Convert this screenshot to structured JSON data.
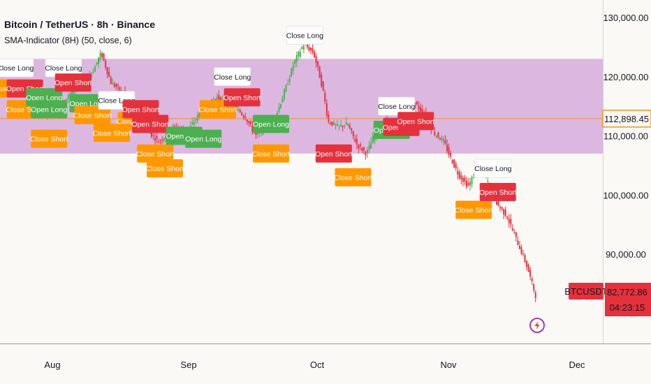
{
  "header": {
    "title": "Bitcoin / TetherUS · 8h · Binance",
    "indicator": "SMA-Indicator (8H) (50, close, 6)"
  },
  "price_tag": {
    "value": "112,898.45",
    "color": "#f7931a"
  },
  "last_price": {
    "symbol": "BTCUSDT",
    "value": "82,772.86",
    "countdown": "04:23:15",
    "color": "#e5313c"
  },
  "colors": {
    "band": "#dcb7e0",
    "open_long": "#4caf50",
    "open_short": "#e5313c",
    "close_short": "#ff9800",
    "close_long": "#ffffff",
    "candle_up": "#4caf50",
    "candle_down": "#e5313c",
    "background": "#fbf9f5"
  },
  "chart_data": {
    "type": "candlestick",
    "x_ticks": [
      "Aug",
      "Sep",
      "Oct",
      "Nov",
      "Dec"
    ],
    "y_ticks": [
      "130,000.00",
      "120,000.00",
      "110,000.00",
      "100,000.00",
      "90,000.00"
    ],
    "ylim": [
      80000,
      135000
    ],
    "band": [
      107000,
      123000
    ],
    "price_path": [
      {
        "t": 0,
        "p": 119000
      },
      {
        "t": 3,
        "p": 118000
      },
      {
        "t": 6,
        "p": 116500
      },
      {
        "t": 9,
        "p": 113500
      },
      {
        "t": 12,
        "p": 115500
      },
      {
        "t": 15,
        "p": 118500
      },
      {
        "t": 18,
        "p": 120500
      },
      {
        "t": 20,
        "p": 124000
      },
      {
        "t": 22,
        "p": 119000
      },
      {
        "t": 25,
        "p": 117000
      },
      {
        "t": 28,
        "p": 113000
      },
      {
        "t": 30,
        "p": 110500
      },
      {
        "t": 32,
        "p": 109000
      },
      {
        "t": 35,
        "p": 111500
      },
      {
        "t": 38,
        "p": 111000
      },
      {
        "t": 41,
        "p": 114500
      },
      {
        "t": 44,
        "p": 116500
      },
      {
        "t": 47,
        "p": 115500
      },
      {
        "t": 50,
        "p": 113000
      },
      {
        "t": 52,
        "p": 110000
      },
      {
        "t": 54,
        "p": 111500
      },
      {
        "t": 56,
        "p": 113000
      },
      {
        "t": 58,
        "p": 117500
      },
      {
        "t": 60,
        "p": 122500
      },
      {
        "t": 62,
        "p": 125500
      },
      {
        "t": 64,
        "p": 124000
      },
      {
        "t": 65,
        "p": 121000
      },
      {
        "t": 66,
        "p": 117500
      },
      {
        "t": 67,
        "p": 112500
      },
      {
        "t": 69,
        "p": 111500
      },
      {
        "t": 71,
        "p": 112000
      },
      {
        "t": 73,
        "p": 108500
      },
      {
        "t": 75,
        "p": 107000
      },
      {
        "t": 77,
        "p": 111000
      },
      {
        "t": 79,
        "p": 112500
      },
      {
        "t": 81,
        "p": 110500
      },
      {
        "t": 83,
        "p": 113000
      },
      {
        "t": 85,
        "p": 115500
      },
      {
        "t": 87,
        "p": 113500
      },
      {
        "t": 89,
        "p": 110500
      },
      {
        "t": 91,
        "p": 109000
      },
      {
        "t": 92,
        "p": 107000
      },
      {
        "t": 94,
        "p": 103500
      },
      {
        "t": 96,
        "p": 101500
      },
      {
        "t": 98,
        "p": 104500
      },
      {
        "t": 100,
        "p": 102500
      },
      {
        "t": 102,
        "p": 98500
      },
      {
        "t": 104,
        "p": 96500
      },
      {
        "t": 106,
        "p": 92500
      },
      {
        "t": 108,
        "p": 88500
      },
      {
        "t": 110,
        "p": 83000
      }
    ],
    "signals": [
      {
        "type": "close_long",
        "text": "Close Long",
        "t": 2,
        "p": 121500
      },
      {
        "type": "close_short",
        "text": "Close Short",
        "t": 1,
        "p": 118000
      },
      {
        "type": "open_short",
        "text": "Open Short",
        "t": 4,
        "p": 118000
      },
      {
        "type": "close_short",
        "text": "Close Short",
        "t": 4,
        "p": 114500
      },
      {
        "type": "open_long",
        "text": "Open Long",
        "t": 8,
        "p": 116500
      },
      {
        "type": "open_long",
        "text": "Open Long",
        "t": 9,
        "p": 114500
      },
      {
        "type": "close_short",
        "text": "Close Short",
        "t": 9,
        "p": 109500
      },
      {
        "type": "close_long",
        "text": "Close Long",
        "t": 12,
        "p": 121500
      },
      {
        "type": "open_short",
        "text": "Open Short",
        "t": 14,
        "p": 119000
      },
      {
        "type": "open_long",
        "text": "Open Long",
        "t": 17,
        "p": 115500
      },
      {
        "type": "close_short",
        "text": "Close Short",
        "t": 18,
        "p": 113500
      },
      {
        "type": "close_short",
        "text": "Close Short",
        "t": 22,
        "p": 110500
      },
      {
        "type": "close_long",
        "text": "Close Long",
        "t": 23,
        "p": 116000
      },
      {
        "type": "close_short",
        "text": "Close Short",
        "t": 27,
        "p": 112500
      },
      {
        "type": "open_short",
        "text": "Open Short",
        "t": 28,
        "p": 114500
      },
      {
        "type": "open_short",
        "text": "Open Short",
        "t": 30,
        "p": 112000
      },
      {
        "type": "close_short",
        "text": "Close Short",
        "t": 31,
        "p": 107000
      },
      {
        "type": "close_short",
        "text": "Close Short",
        "t": 33,
        "p": 104500
      },
      {
        "type": "open_long",
        "text": "Open Long",
        "t": 37,
        "p": 110000
      },
      {
        "type": "open_long",
        "text": "Open Long",
        "t": 41,
        "p": 109500
      },
      {
        "type": "close_short",
        "text": "Close Short",
        "t": 44,
        "p": 114500
      },
      {
        "type": "close_long",
        "text": "Close Long",
        "t": 47,
        "p": 120000
      },
      {
        "type": "open_short",
        "text": "Open Short",
        "t": 49,
        "p": 116500
      },
      {
        "type": "open_long",
        "text": "Open Long",
        "t": 55,
        "p": 112000
      },
      {
        "type": "close_short",
        "text": "Close Short",
        "t": 55,
        "p": 107000
      },
      {
        "type": "close_long",
        "text": "Close Long",
        "t": 62,
        "p": 127000
      },
      {
        "type": "open_short",
        "text": "Open Short",
        "t": 68,
        "p": 107000
      },
      {
        "type": "close_short",
        "text": "Close Short",
        "t": 72,
        "p": 103000
      },
      {
        "type": "open_long",
        "text": "Open Long",
        "t": 80,
        "p": 111000
      },
      {
        "type": "close_long",
        "text": "Close Long",
        "t": 81,
        "p": 115000
      },
      {
        "type": "open_short",
        "text": "Open Short",
        "t": 82,
        "p": 111500
      },
      {
        "type": "open_short",
        "text": "Open Short",
        "t": 85,
        "p": 112500
      },
      {
        "type": "close_short",
        "text": "Close Short",
        "t": 97,
        "p": 97500
      },
      {
        "type": "close_long",
        "text": "Close Long",
        "t": 101,
        "p": 104500
      },
      {
        "type": "open_short",
        "text": "Open Short",
        "t": 102,
        "p": 100500
      }
    ]
  }
}
